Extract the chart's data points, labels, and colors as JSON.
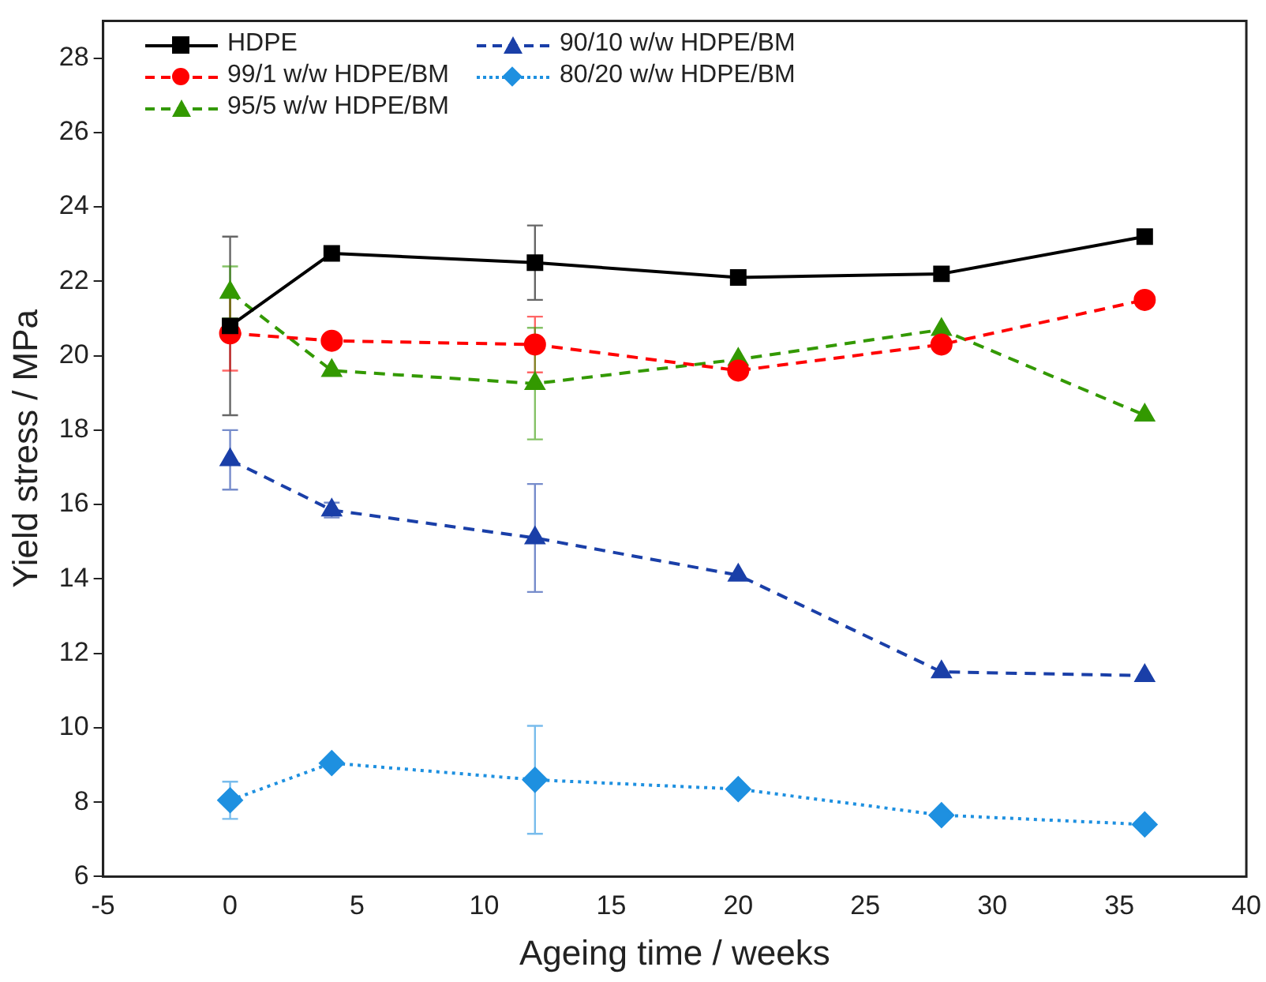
{
  "chart_data": {
    "type": "line",
    "xlabel": "Ageing time / weeks",
    "ylabel": "Yield stress / MPa",
    "x": [
      0,
      4,
      12,
      20,
      28,
      36
    ],
    "xlim": [
      -5,
      40
    ],
    "xticks": [
      -5,
      0,
      5,
      10,
      15,
      20,
      25,
      30,
      35,
      40
    ],
    "ylim": [
      6,
      29
    ],
    "yticks": [
      6,
      8,
      10,
      12,
      14,
      16,
      18,
      20,
      22,
      24,
      26,
      28
    ],
    "grid": false,
    "legend": "top left",
    "series": [
      {
        "name": "HDPE",
        "color": "#000000",
        "marker": "square",
        "line_style": "solid",
        "values": [
          20.8,
          22.75,
          22.5,
          22.1,
          22.2,
          23.2
        ],
        "errors": [
          2.4,
          null,
          1.0,
          null,
          null,
          null
        ]
      },
      {
        "name": "99/1 w/w HDPE/BM",
        "color": "#ff0000",
        "marker": "circle",
        "line_style": "dashed",
        "values": [
          20.6,
          20.4,
          20.3,
          19.6,
          20.3,
          21.5
        ],
        "errors": [
          1.0,
          null,
          0.75,
          null,
          null,
          null
        ]
      },
      {
        "name": "95/5 w/w HDPE/BM",
        "color": "#339900",
        "marker": "triangle",
        "line_style": "dashed",
        "values": [
          21.7,
          19.6,
          19.25,
          19.9,
          20.7,
          18.4
        ],
        "errors": [
          0.7,
          null,
          1.5,
          null,
          null,
          null
        ]
      },
      {
        "name": "90/10 w/w HDPE/BM",
        "color": "#1a3fa8",
        "marker": "triangle",
        "line_style": "dashed",
        "values": [
          17.2,
          15.85,
          15.1,
          14.1,
          11.5,
          11.4
        ],
        "errors": [
          0.8,
          0.2,
          1.45,
          null,
          null,
          null
        ]
      },
      {
        "name": "80/20 w/w HDPE/BM",
        "color": "#1e90e0",
        "marker": "diamond",
        "line_style": "dotted",
        "values": [
          8.05,
          9.05,
          8.6,
          8.35,
          7.65,
          7.4
        ],
        "errors": [
          0.5,
          null,
          1.45,
          null,
          null,
          null
        ]
      }
    ]
  }
}
